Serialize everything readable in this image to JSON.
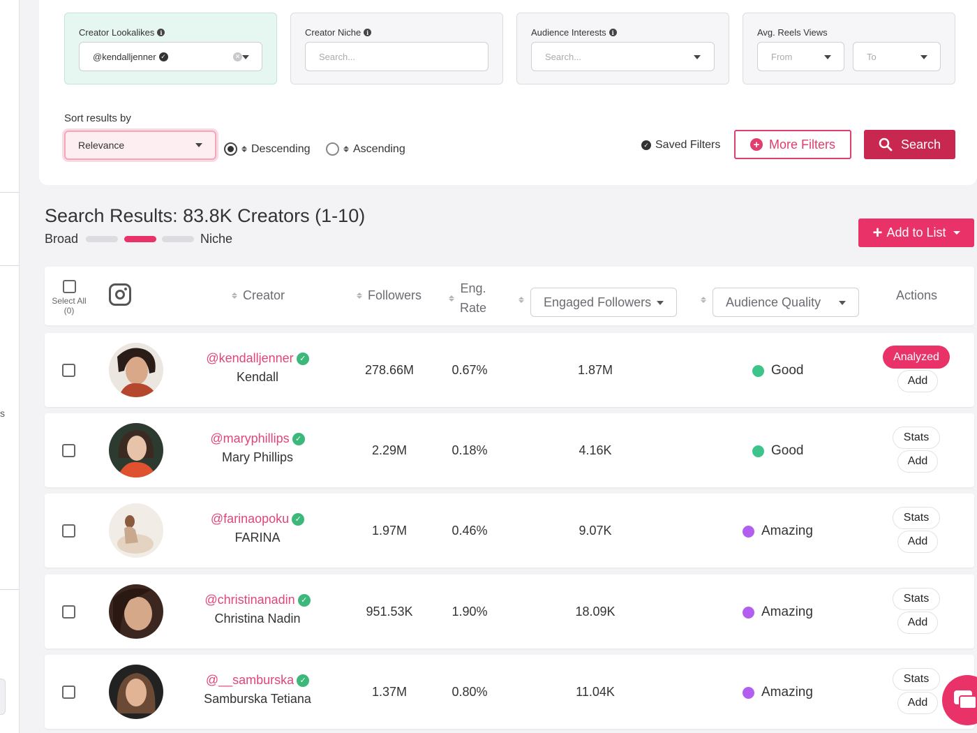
{
  "filters": {
    "lookalikes": {
      "label": "Creator Lookalikes",
      "value": "@kendalljenner"
    },
    "niche": {
      "label": "Creator Niche",
      "placeholder": "Search..."
    },
    "interests": {
      "label": "Audience Interests",
      "placeholder": "Search..."
    },
    "reels": {
      "label": "Avg. Reels Views",
      "from_placeholder": "From",
      "to_placeholder": "To"
    }
  },
  "sort": {
    "label": "Sort results by",
    "selected": "Relevance",
    "descending": "Descending",
    "ascending": "Ascending",
    "order": "descending"
  },
  "actions": {
    "saved_filters": "Saved Filters",
    "more_filters": "More Filters",
    "search": "Search",
    "add_to_list": "Add to List"
  },
  "results": {
    "title": "Search Results: 83.8K Creators (1-10)",
    "broad": "Broad",
    "niche": "Niche",
    "slider_position": 2,
    "slider_segments": 3
  },
  "table": {
    "select_all": "Select All",
    "select_count": "(0)",
    "headers": {
      "creator": "Creator",
      "followers": "Followers",
      "eng_rate_1": "Eng.",
      "eng_rate_2": "Rate",
      "engaged_followers": "Engaged Followers",
      "audience_quality": "Audience Quality",
      "actions": "Actions"
    },
    "rows": [
      {
        "handle": "@kendalljenner",
        "name": "Kendall",
        "followers": "278.66M",
        "eng_rate": "0.67%",
        "engaged": "1.87M",
        "quality": "Good",
        "quality_color": "#3cc48a",
        "primary_action": "Analyzed",
        "add": "Add"
      },
      {
        "handle": "@maryphillips",
        "name": "Mary Phillips",
        "followers": "2.29M",
        "eng_rate": "0.18%",
        "engaged": "4.16K",
        "quality": "Good",
        "quality_color": "#3cc48a",
        "primary_action": "Stats",
        "add": "Add"
      },
      {
        "handle": "@farinaopoku",
        "name": "FARINA",
        "followers": "1.97M",
        "eng_rate": "0.46%",
        "engaged": "9.07K",
        "quality": "Amazing",
        "quality_color": "#b25ef0",
        "primary_action": "Stats",
        "add": "Add"
      },
      {
        "handle": "@christinanadin",
        "name": "Christina Nadin",
        "followers": "951.53K",
        "eng_rate": "1.90%",
        "engaged": "18.09K",
        "quality": "Amazing",
        "quality_color": "#b25ef0",
        "primary_action": "Stats",
        "add": "Add"
      },
      {
        "handle": "@__samburska",
        "name": "Samburska Tetiana",
        "followers": "1.37M",
        "eng_rate": "0.80%",
        "engaged": "11.04K",
        "quality": "Amazing",
        "quality_color": "#b25ef0",
        "primary_action": "Stats",
        "add": "Add"
      }
    ]
  },
  "colors": {
    "brand_pink": "#e83268",
    "search_red": "#c8274f",
    "handle_pink": "#e0457a",
    "verified_green": "#3cb87a"
  },
  "sidebar": {
    "fragment": "s"
  }
}
